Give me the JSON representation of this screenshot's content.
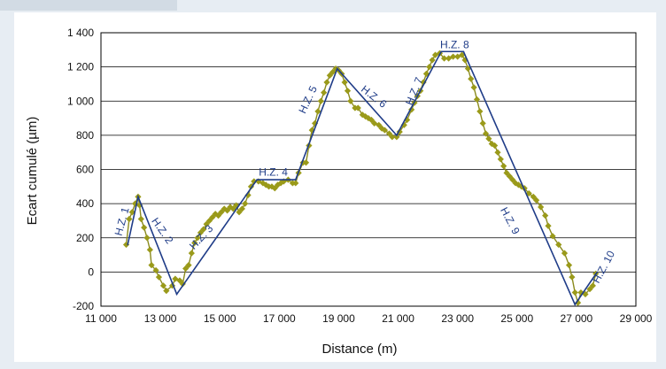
{
  "chart_data": {
    "type": "line",
    "xlabel": "Distance (m)",
    "ylabel": "Ecart cumulé  (µm)",
    "xlim": [
      11000,
      29000
    ],
    "ylim": [
      -200,
      1400
    ],
    "x_ticks": [
      11000,
      13000,
      15000,
      17000,
      19000,
      21000,
      23000,
      25000,
      27000,
      29000
    ],
    "x_tick_labels": [
      "11 000",
      "13 000",
      "15 000",
      "17 000",
      "19 000",
      "21 000",
      "23 000",
      "25 000",
      "27 000",
      "29 000"
    ],
    "y_ticks": [
      -200,
      0,
      200,
      400,
      600,
      800,
      1000,
      1200,
      1400
    ],
    "y_tick_labels": [
      "-200",
      "0",
      "200",
      "400",
      "600",
      "800",
      "1 000",
      "1 200",
      "1 400"
    ],
    "grid": "horizontal",
    "colors": {
      "measured": "#8a8a1e",
      "marker": "#9a9a1a",
      "segments": "#1f3c88",
      "grid": "#000000"
    },
    "series": [
      {
        "values": [
          [
            11850,
            160
          ],
          [
            11950,
            310
          ],
          [
            12050,
            350
          ],
          [
            12150,
            400
          ],
          [
            12250,
            440
          ],
          [
            12300,
            390
          ],
          [
            12350,
            310
          ],
          [
            12450,
            260
          ],
          [
            12550,
            200
          ],
          [
            12650,
            130
          ],
          [
            12700,
            40
          ],
          [
            12850,
            10
          ],
          [
            12950,
            -30
          ],
          [
            13100,
            -80
          ],
          [
            13200,
            -110
          ],
          [
            13400,
            -80
          ],
          [
            13500,
            -40
          ],
          [
            13650,
            -50
          ],
          [
            13750,
            -70
          ],
          [
            13850,
            20
          ],
          [
            13950,
            40
          ],
          [
            14050,
            110
          ],
          [
            14150,
            170
          ],
          [
            14250,
            200
          ],
          [
            14350,
            230
          ],
          [
            14450,
            250
          ],
          [
            14550,
            280
          ],
          [
            14650,
            300
          ],
          [
            14750,
            320
          ],
          [
            14850,
            340
          ],
          [
            14950,
            330
          ],
          [
            15050,
            350
          ],
          [
            15150,
            370
          ],
          [
            15250,
            360
          ],
          [
            15350,
            380
          ],
          [
            15450,
            370
          ],
          [
            15550,
            390
          ],
          [
            15650,
            350
          ],
          [
            15750,
            370
          ],
          [
            15850,
            400
          ],
          [
            15950,
            450
          ],
          [
            16050,
            500
          ],
          [
            16150,
            530
          ],
          [
            16300,
            530
          ],
          [
            16450,
            520
          ],
          [
            16550,
            510
          ],
          [
            16650,
            500
          ],
          [
            16750,
            500
          ],
          [
            16850,
            490
          ],
          [
            16950,
            510
          ],
          [
            17050,
            520
          ],
          [
            17150,
            530
          ],
          [
            17300,
            540
          ],
          [
            17450,
            520
          ],
          [
            17550,
            520
          ],
          [
            17650,
            580
          ],
          [
            17800,
            640
          ],
          [
            17900,
            640
          ],
          [
            18000,
            740
          ],
          [
            18100,
            830
          ],
          [
            18200,
            870
          ],
          [
            18300,
            940
          ],
          [
            18400,
            1000
          ],
          [
            18500,
            1050
          ],
          [
            18600,
            1110
          ],
          [
            18700,
            1150
          ],
          [
            18800,
            1170
          ],
          [
            18900,
            1190
          ],
          [
            19000,
            1180
          ],
          [
            19100,
            1160
          ],
          [
            19200,
            1110
          ],
          [
            19300,
            1060
          ],
          [
            19400,
            1000
          ],
          [
            19550,
            960
          ],
          [
            19650,
            960
          ],
          [
            19800,
            920
          ],
          [
            19900,
            910
          ],
          [
            20000,
            900
          ],
          [
            20100,
            890
          ],
          [
            20200,
            870
          ],
          [
            20350,
            860
          ],
          [
            20450,
            840
          ],
          [
            20550,
            830
          ],
          [
            20700,
            810
          ],
          [
            20800,
            790
          ],
          [
            20950,
            790
          ],
          [
            21050,
            820
          ],
          [
            21200,
            860
          ],
          [
            21300,
            890
          ],
          [
            21450,
            950
          ],
          [
            21550,
            990
          ],
          [
            21650,
            1030
          ],
          [
            21750,
            1060
          ],
          [
            21850,
            1110
          ],
          [
            21950,
            1160
          ],
          [
            22050,
            1200
          ],
          [
            22150,
            1240
          ],
          [
            22250,
            1270
          ],
          [
            22400,
            1280
          ],
          [
            22550,
            1250
          ],
          [
            22700,
            1250
          ],
          [
            22850,
            1260
          ],
          [
            23000,
            1260
          ],
          [
            23150,
            1270
          ],
          [
            23250,
            1240
          ],
          [
            23350,
            1190
          ],
          [
            23450,
            1130
          ],
          [
            23550,
            1080
          ],
          [
            23650,
            1010
          ],
          [
            23750,
            940
          ],
          [
            23850,
            870
          ],
          [
            23950,
            810
          ],
          [
            24050,
            780
          ],
          [
            24150,
            750
          ],
          [
            24250,
            740
          ],
          [
            24350,
            700
          ],
          [
            24450,
            660
          ],
          [
            24550,
            620
          ],
          [
            24650,
            580
          ],
          [
            24750,
            560
          ],
          [
            24850,
            540
          ],
          [
            24950,
            520
          ],
          [
            25050,
            510
          ],
          [
            25150,
            500
          ],
          [
            25250,
            490
          ],
          [
            25400,
            460
          ],
          [
            25550,
            440
          ],
          [
            25650,
            420
          ],
          [
            25800,
            380
          ],
          [
            25950,
            330
          ],
          [
            26050,
            270
          ],
          [
            26200,
            210
          ],
          [
            26400,
            160
          ],
          [
            26600,
            110
          ],
          [
            26750,
            40
          ],
          [
            26850,
            -30
          ],
          [
            26950,
            -120
          ],
          [
            27050,
            -180
          ],
          [
            27150,
            -120
          ],
          [
            27300,
            -130
          ],
          [
            27450,
            -100
          ],
          [
            27550,
            -80
          ],
          [
            27650,
            -10
          ]
        ]
      },
      {
        "values": [
          [
            11900,
            160
          ],
          [
            12250,
            440
          ],
          [
            13550,
            -130
          ],
          [
            16250,
            540
          ],
          [
            17550,
            540
          ],
          [
            18950,
            1190
          ],
          [
            20950,
            800
          ],
          [
            22450,
            1290
          ],
          [
            23200,
            1290
          ],
          [
            26950,
            -190
          ],
          [
            27700,
            0
          ]
        ]
      }
    ],
    "annotations": [
      {
        "text": "H.Z. 1",
        "x": 11820,
        "y": 290,
        "angle": -75
      },
      {
        "text": "H.Z. 2",
        "x": 12970,
        "y": 230,
        "angle": 55
      },
      {
        "text": "H.Z. 3",
        "x": 14460,
        "y": 190,
        "angle": -47
      },
      {
        "text": "H.Z. 4",
        "x": 16800,
        "y": 565,
        "angle": 0
      },
      {
        "text": "H.Z. 5",
        "x": 18070,
        "y": 1000,
        "angle": -65
      },
      {
        "text": "H.Z. 6",
        "x": 20110,
        "y": 1010,
        "angle": 38
      },
      {
        "text": "H.Z. 7",
        "x": 21650,
        "y": 1050,
        "angle": -68
      },
      {
        "text": "H.Z. 8",
        "x": 22900,
        "y": 1310,
        "angle": 0
      },
      {
        "text": "H.Z. 9",
        "x": 24660,
        "y": 290,
        "angle": 62
      },
      {
        "text": "H.Z. 10",
        "x": 28020,
        "y": 20,
        "angle": -62
      }
    ]
  }
}
